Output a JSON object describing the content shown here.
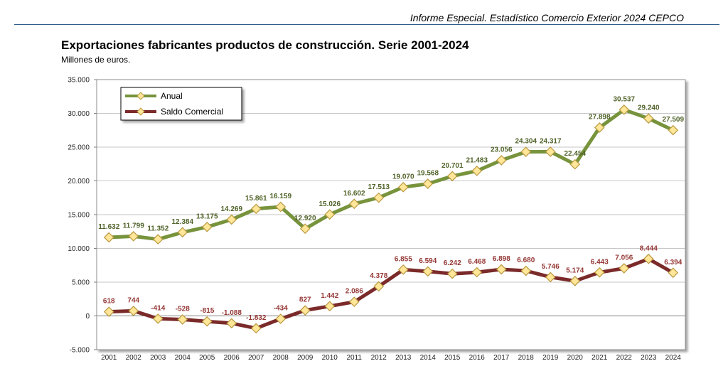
{
  "header": {
    "text": "Informe Especial. Estadístico Comercio Exterior 2024 CEPCO"
  },
  "chart_data": {
    "type": "line",
    "title": "Exportaciones fabricantes productos de construcción. Serie 2001-2024",
    "subtitle": "Millones de euros.",
    "ylim": [
      -5000,
      35000
    ],
    "ytick_labels": [
      "-5.000",
      "0",
      "5.000",
      "10.000",
      "15.000",
      "20.000",
      "25.000",
      "30.000",
      "35.000"
    ],
    "ytick_values": [
      -5000,
      0,
      5000,
      10000,
      15000,
      20000,
      25000,
      30000,
      35000
    ],
    "grid": true,
    "legend": "top-left",
    "categories": [
      "2001",
      "2002",
      "2003",
      "2004",
      "2005",
      "2006",
      "2007",
      "2008",
      "2009",
      "2010",
      "2011",
      "2012",
      "2013",
      "2014",
      "2015",
      "2016",
      "2017",
      "2018",
      "2019",
      "2020",
      "2021",
      "2022",
      "2023",
      "2024"
    ],
    "series": [
      {
        "name": "Anual",
        "color": "#77933c",
        "label_color": "#4f6228",
        "values": [
          11632,
          11799,
          11352,
          12384,
          13175,
          14269,
          15861,
          16159,
          12920,
          15026,
          16602,
          17513,
          19070,
          19568,
          20701,
          21483,
          23056,
          24304,
          24317,
          22454,
          27898,
          30537,
          29240,
          27509
        ],
        "labels": [
          "11.632",
          "11.799",
          "11.352",
          "12.384",
          "13.175",
          "14.269",
          "15.861",
          "16.159",
          "12.920",
          "15.026",
          "16.602",
          "17.513",
          "19.070",
          "19.568",
          "20.701",
          "21.483",
          "23.056",
          "24.304",
          "24.317",
          "22.454",
          "27.898",
          "30.537",
          "29.240",
          "27.509"
        ]
      },
      {
        "name": "Saldo Comercial",
        "color": "#7b2a2a",
        "label_color": "#943634",
        "values": [
          618,
          744,
          -414,
          -528,
          -815,
          -1088,
          -1832,
          -434,
          827,
          1442,
          2086,
          4378,
          6855,
          6594,
          6242,
          6468,
          6898,
          6680,
          5746,
          5174,
          6443,
          7056,
          8444,
          6394
        ],
        "labels": [
          "618",
          "744",
          "-414",
          "-528",
          "-815",
          "-1.088",
          "-1.832",
          "-434",
          "827",
          "1.442",
          "2.086",
          "4.378",
          "6.855",
          "6.594",
          "6.242",
          "6.468",
          "6.898",
          "6.680",
          "5.746",
          "5.174",
          "6.443",
          "7.056",
          "8.444",
          "6.394"
        ]
      }
    ]
  }
}
